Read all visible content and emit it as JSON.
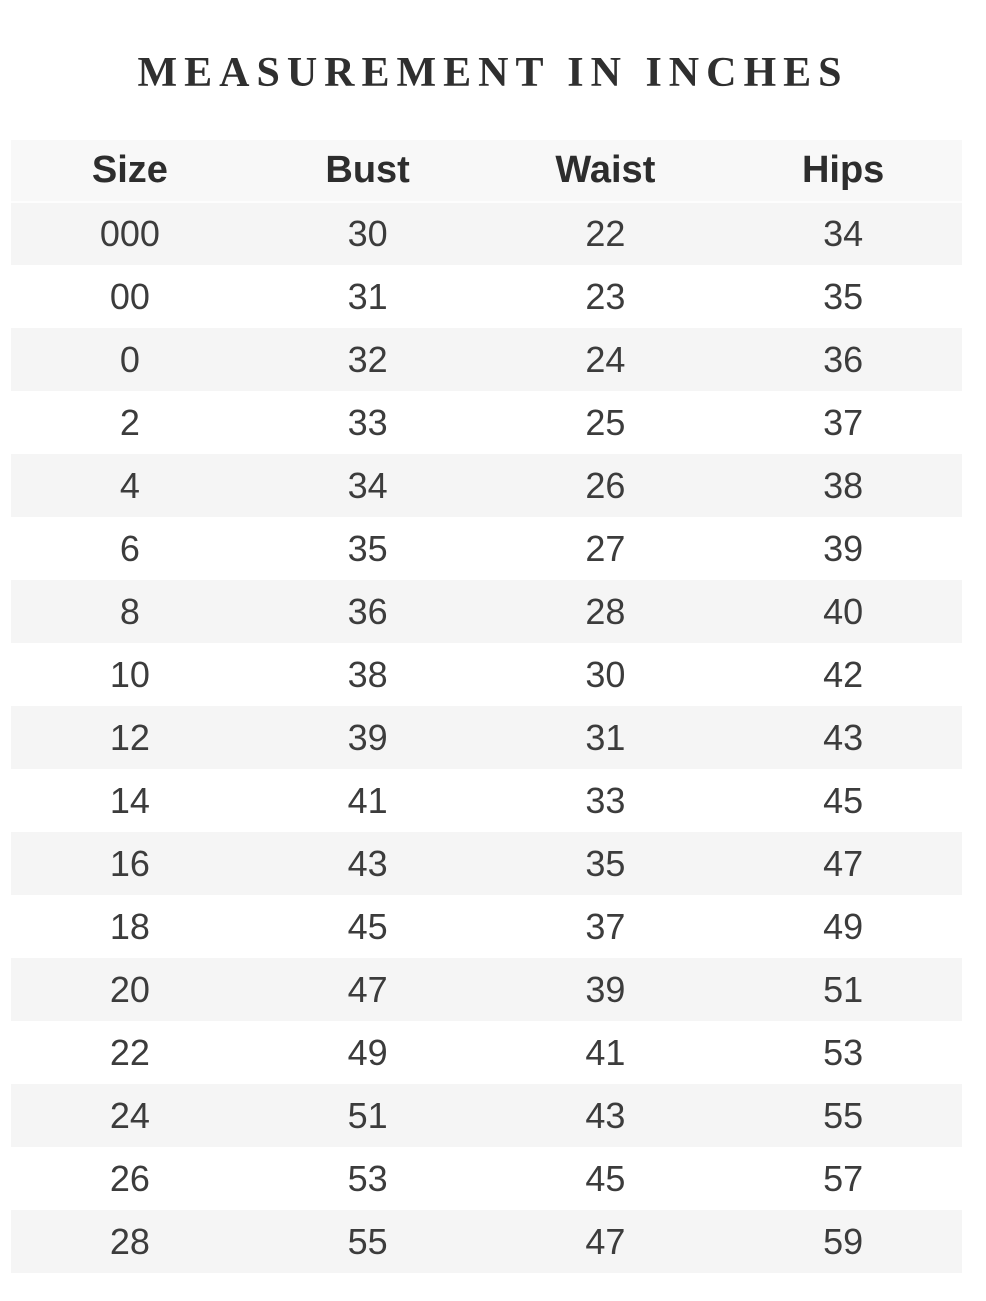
{
  "title": "MEASUREMENT IN INCHES",
  "table": {
    "columns": [
      "Size",
      "Bust",
      "Waist",
      "Hips"
    ],
    "rows": [
      [
        "000",
        "30",
        "22",
        "34"
      ],
      [
        "00",
        "31",
        "23",
        "35"
      ],
      [
        "0",
        "32",
        "24",
        "36"
      ],
      [
        "2",
        "33",
        "25",
        "37"
      ],
      [
        "4",
        "34",
        "26",
        "38"
      ],
      [
        "6",
        "35",
        "27",
        "39"
      ],
      [
        "8",
        "36",
        "28",
        "40"
      ],
      [
        "10",
        "38",
        "30",
        "42"
      ],
      [
        "12",
        "39",
        "31",
        "43"
      ],
      [
        "14",
        "41",
        "33",
        "45"
      ],
      [
        "16",
        "43",
        "35",
        "47"
      ],
      [
        "18",
        "45",
        "37",
        "49"
      ],
      [
        "20",
        "47",
        "39",
        "51"
      ],
      [
        "22",
        "49",
        "41",
        "53"
      ],
      [
        "24",
        "51",
        "43",
        "55"
      ],
      [
        "26",
        "53",
        "45",
        "57"
      ],
      [
        "28",
        "55",
        "47",
        "59"
      ]
    ]
  },
  "colors": {
    "header_bg": "#f8f8f8",
    "stripe_bg": "#f5f5f5",
    "title_text": "#2f2f2f",
    "header_text": "#2d2d2d",
    "cell_text": "#3c3c3c",
    "page_bg": "#ffffff"
  },
  "chart_data": {
    "type": "table",
    "title": "MEASUREMENT IN INCHES",
    "columns": [
      "Size",
      "Bust",
      "Waist",
      "Hips"
    ],
    "categories": [
      "000",
      "00",
      "0",
      "2",
      "4",
      "6",
      "8",
      "10",
      "12",
      "14",
      "16",
      "18",
      "20",
      "22",
      "24",
      "26",
      "28"
    ],
    "series": [
      {
        "name": "Bust",
        "values": [
          30,
          31,
          32,
          33,
          34,
          35,
          36,
          38,
          39,
          41,
          43,
          45,
          47,
          49,
          51,
          53,
          55
        ]
      },
      {
        "name": "Waist",
        "values": [
          22,
          23,
          24,
          25,
          26,
          27,
          28,
          30,
          31,
          33,
          35,
          37,
          39,
          41,
          43,
          45,
          47
        ]
      },
      {
        "name": "Hips",
        "values": [
          34,
          35,
          36,
          37,
          38,
          39,
          40,
          42,
          43,
          45,
          47,
          49,
          51,
          53,
          55,
          57,
          59
        ]
      }
    ],
    "layout": {
      "striped_rows": true,
      "header_row": true,
      "units": "inches"
    }
  }
}
